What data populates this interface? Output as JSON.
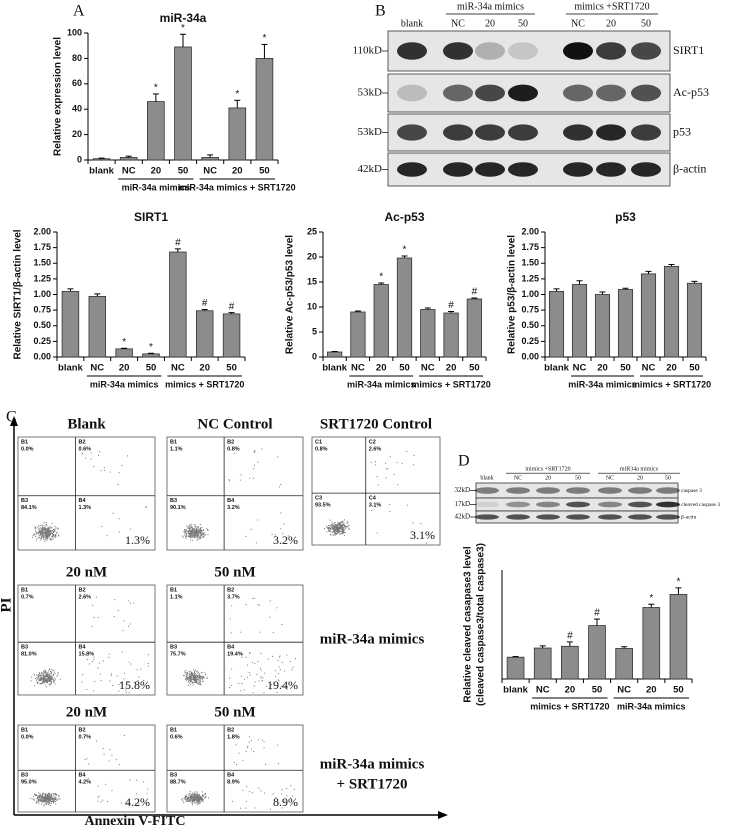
{
  "panel_labels": [
    "A",
    "B",
    "C",
    "D"
  ],
  "chart_data": [
    {
      "type": "bar",
      "title": "miR-34a",
      "y_label": "Relative expression level",
      "categories": [
        "blank",
        "NC",
        "20",
        "50",
        "NC",
        "20",
        "50"
      ],
      "groups": [
        "miR-34a mimics",
        "miR-34a mimics + SRT1720"
      ],
      "values": [
        1,
        2,
        46,
        89,
        2,
        41,
        80
      ],
      "errors": [
        0.5,
        1,
        6,
        10,
        2,
        6,
        11
      ],
      "value_annotations": [
        null,
        null,
        "*",
        "*",
        null,
        "*",
        "*"
      ],
      "color": "#8c8c8c",
      "ylim": [
        0,
        100
      ],
      "yticks": [
        0,
        20,
        40,
        60,
        80,
        100
      ]
    },
    {
      "type": "bar",
      "title": "SIRT1",
      "y_label": "Relative SIRT1/β-actin level",
      "categories": [
        "blank",
        "NC",
        "20",
        "50",
        "NC",
        "20",
        "50"
      ],
      "groups": [
        "miR-34a mimics",
        "mimics + SRT1720"
      ],
      "values": [
        1.05,
        0.97,
        0.13,
        0.05,
        1.68,
        0.74,
        0.69
      ],
      "errors": [
        0.04,
        0.04,
        0.01,
        0.01,
        0.05,
        0.02,
        0.02
      ],
      "value_annotations": [
        null,
        null,
        "*",
        "*",
        "#",
        "#",
        "#"
      ],
      "color": "#8c8c8c",
      "ylim": [
        0,
        2
      ],
      "yticks": [
        {
          "value": 0,
          "label": "0.00"
        },
        {
          "value": 0.25,
          "label": "0.25"
        },
        {
          "value": 0.5,
          "label": "0.50"
        },
        {
          "value": 0.75,
          "label": "0.75"
        },
        {
          "value": 1,
          "label": "1.00"
        },
        {
          "value": 1.25,
          "label": "1.25"
        },
        {
          "value": 1.5,
          "label": "1.50"
        },
        {
          "value": 1.75,
          "label": "1.75"
        },
        {
          "value": 2,
          "label": "2.00"
        }
      ]
    },
    {
      "type": "bar",
      "title": "Ac-p53",
      "y_label": "Relative Ac-p53/p53 level",
      "categories": [
        "blank",
        "NC",
        "20",
        "50",
        "NC",
        "20",
        "50"
      ],
      "groups": [
        "miR-34a mimics",
        "mimics + SRT1720"
      ],
      "values": [
        1,
        9,
        14.5,
        19.8,
        9.5,
        8.8,
        11.6
      ],
      "errors": [
        0.1,
        0.2,
        0.3,
        0.4,
        0.3,
        0.3,
        0.2
      ],
      "value_annotations": [
        null,
        null,
        "*",
        "*",
        null,
        "#",
        "#"
      ],
      "color": "#8c8c8c",
      "ylim": [
        0,
        25
      ],
      "yticks": [
        0,
        5,
        10,
        15,
        20,
        25
      ]
    },
    {
      "type": "bar",
      "title": "p53",
      "y_label": "Relative p53/β-actin level",
      "categories": [
        "blank",
        "NC",
        "20",
        "50",
        "NC",
        "20",
        "50"
      ],
      "groups": [
        "miR-34a mimics",
        "mimics + SRT1720"
      ],
      "values": [
        1.05,
        1.16,
        1.0,
        1.08,
        1.33,
        1.45,
        1.18
      ],
      "errors": [
        0.04,
        0.06,
        0.04,
        0.02,
        0.04,
        0.03,
        0.03
      ],
      "value_annotations": [
        null,
        null,
        null,
        null,
        null,
        null,
        null
      ],
      "color": "#8c8c8c",
      "ylim": [
        0,
        2
      ],
      "yticks": [
        {
          "value": 0,
          "label": "0.00"
        },
        {
          "value": 0.25,
          "label": "0.25"
        },
        {
          "value": 0.5,
          "label": "0.50"
        },
        {
          "value": 0.75,
          "label": "0.75"
        },
        {
          "value": 1,
          "label": "1.00"
        },
        {
          "value": 1.25,
          "label": "1.25"
        },
        {
          "value": 1.5,
          "label": "1.50"
        },
        {
          "value": 1.75,
          "label": "1.75"
        },
        {
          "value": 2,
          "label": "2.00"
        }
      ]
    },
    {
      "type": "bar",
      "y_label": [
        "Relative cleaved casapase3 level",
        "(cleaved caspase3/total caspase3)"
      ],
      "categories": [
        "blank",
        "NC",
        "20",
        "50",
        "NC",
        "20",
        "50"
      ],
      "groups": [
        "mimics + SRT1720",
        "miR-34a mimics"
      ],
      "values": [
        1.0,
        1.42,
        1.5,
        2.45,
        1.4,
        3.28,
        3.88
      ],
      "errors": [
        0.03,
        0.1,
        0.2,
        0.3,
        0.08,
        0.15,
        0.3
      ],
      "value_annotations": [
        null,
        null,
        "#",
        "#",
        null,
        "*",
        "*"
      ],
      "color": "#8c8c8c",
      "ylim": [
        0,
        5
      ]
    }
  ],
  "blot_B": {
    "lanes": [
      "blank",
      "NC",
      "20",
      "50",
      "NC",
      "20",
      "50"
    ],
    "groups": [
      "miR-34a mimics",
      "mimics +SRT1720"
    ],
    "rows": [
      {
        "size": "110kD",
        "protein": "SIRT1"
      },
      {
        "size": "53kD",
        "protein": "Ac-p53"
      },
      {
        "size": "53kD",
        "protein": "p53"
      },
      {
        "size": "42kD",
        "protein": "β-actin"
      }
    ]
  },
  "blot_D": {
    "lanes": [
      "blank",
      "NC",
      "20",
      "50",
      "NC",
      "20",
      "50"
    ],
    "groups": [
      "mimics +SRT1720",
      "miR34a mimics"
    ],
    "rows": [
      {
        "size": "32kD",
        "protein": "caspase 3"
      },
      {
        "size": "17kD",
        "protein": "cleaved caspase 3"
      },
      {
        "size": "42kD",
        "protein": "β-actin"
      }
    ]
  },
  "flow_cytometry": {
    "y_axis": "PI",
    "x_axis": "Annexin V-FITC",
    "row_labels": [
      [
        "miR-34a mimics"
      ],
      [
        "miR-34a mimics",
        "+ SRT1720"
      ]
    ],
    "plots": [
      {
        "title": "Blank",
        "quadrants": [
          {
            "name": "B1",
            "label": "0.0%"
          },
          {
            "name": "B2",
            "label": "0.6%"
          },
          {
            "name": "B3",
            "label": "84.1%"
          },
          {
            "name": "B4",
            "label": "1.3%"
          }
        ],
        "apoptosis": "1.3%"
      },
      {
        "title": "NC Control",
        "quadrants": [
          {
            "name": "B1",
            "label": "1.1%"
          },
          {
            "name": "B2",
            "label": "0.8%"
          },
          {
            "name": "B3",
            "label": "90.1%"
          },
          {
            "name": "B4",
            "label": "3.2%"
          }
        ],
        "apoptosis": "3.2%"
      },
      {
        "title": "SRT1720 Control",
        "quadrants": [
          {
            "name": "C1",
            "label": "0.8%"
          },
          {
            "name": "C2",
            "label": "2.6%"
          },
          {
            "name": "C3",
            "label": "93.5%"
          },
          {
            "name": "C4",
            "label": "3.1%"
          }
        ],
        "apoptosis": "3.1%"
      },
      {
        "title": "20 nM",
        "quadrants": [
          {
            "name": "B1",
            "label": "0.7%"
          },
          {
            "name": "B2",
            "label": "2.6%"
          },
          {
            "name": "B3",
            "label": "81.0%"
          },
          {
            "name": "B4",
            "label": "15.8%"
          }
        ],
        "apoptosis": "15.8%"
      },
      {
        "title": "50 nM",
        "quadrants": [
          {
            "name": "B1",
            "label": "1.1%"
          },
          {
            "name": "B2",
            "label": "3.7%"
          },
          {
            "name": "B3",
            "label": "75.7%"
          },
          {
            "name": "B4",
            "label": "19.4%"
          }
        ],
        "apoptosis": "19.4%"
      },
      {
        "title": "20 nM",
        "quadrants": [
          {
            "name": "B1",
            "label": "0.0%"
          },
          {
            "name": "B2",
            "label": "0.7%"
          },
          {
            "name": "B3",
            "label": "95.0%"
          },
          {
            "name": "B4",
            "label": "4.2%"
          }
        ],
        "apoptosis": "4.2%"
      },
      {
        "title": "50 nM",
        "quadrants": [
          {
            "name": "B1",
            "label": "0.6%"
          },
          {
            "name": "B2",
            "label": "1.8%"
          },
          {
            "name": "B3",
            "label": "88.7%"
          },
          {
            "name": "B4",
            "label": "8.9%"
          }
        ],
        "apoptosis": "8.9%"
      }
    ]
  }
}
